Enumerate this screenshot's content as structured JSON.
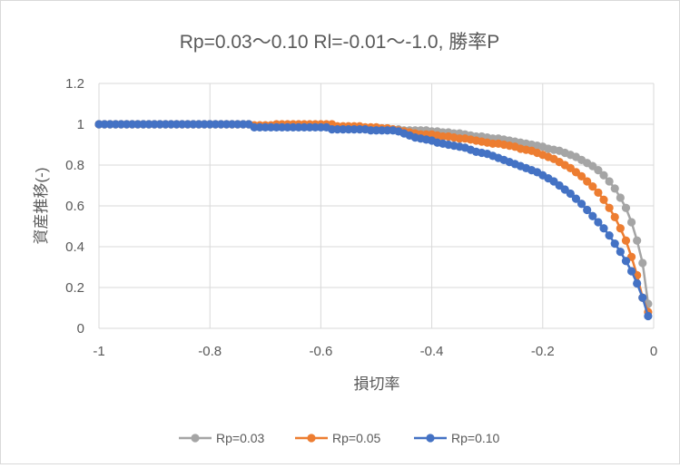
{
  "chart_data": {
    "type": "line",
    "title": "Rp=0.03〜0.10 Rl=-0.01〜-1.0, 勝率P",
    "xlabel": "損切率",
    "ylabel": "資産推移(-)",
    "xlim": [
      -1,
      0
    ],
    "ylim": [
      0,
      1.2
    ],
    "x_ticks": [
      -1,
      -0.8,
      -0.6,
      -0.4,
      -0.2,
      0
    ],
    "x_tick_labels": [
      "-1",
      "-0.8",
      "-0.6",
      "-0.4",
      "-0.2",
      "0"
    ],
    "y_ticks": [
      0,
      0.2,
      0.4,
      0.6,
      0.8,
      1,
      1.2
    ],
    "y_tick_labels": [
      "0",
      "0.2",
      "0.4",
      "0.6",
      "0.8",
      "1",
      "1.2"
    ],
    "grid": true,
    "legend_position": "bottom",
    "x": [
      -1.0,
      -0.99,
      -0.98,
      -0.97,
      -0.96,
      -0.95,
      -0.94,
      -0.93,
      -0.92,
      -0.91,
      -0.9,
      -0.89,
      -0.88,
      -0.87,
      -0.86,
      -0.85,
      -0.84,
      -0.83,
      -0.82,
      -0.81,
      -0.8,
      -0.79,
      -0.78,
      -0.77,
      -0.76,
      -0.75,
      -0.74,
      -0.73,
      -0.72,
      -0.71,
      -0.7,
      -0.69,
      -0.68,
      -0.67,
      -0.66,
      -0.65,
      -0.64,
      -0.63,
      -0.62,
      -0.61,
      -0.6,
      -0.59,
      -0.58,
      -0.57,
      -0.56,
      -0.55,
      -0.54,
      -0.53,
      -0.52,
      -0.51,
      -0.5,
      -0.49,
      -0.48,
      -0.47,
      -0.46,
      -0.45,
      -0.44,
      -0.43,
      -0.42,
      -0.41,
      -0.4,
      -0.39,
      -0.38,
      -0.37,
      -0.36,
      -0.35,
      -0.34,
      -0.33,
      -0.32,
      -0.31,
      -0.3,
      -0.29,
      -0.28,
      -0.27,
      -0.26,
      -0.25,
      -0.24,
      -0.23,
      -0.22,
      -0.21,
      -0.2,
      -0.19,
      -0.18,
      -0.17,
      -0.16,
      -0.15,
      -0.14,
      -0.13,
      -0.12,
      -0.11,
      -0.1,
      -0.09,
      -0.08,
      -0.07,
      -0.06,
      -0.05,
      -0.04,
      -0.03,
      -0.02,
      -0.01
    ],
    "series": [
      {
        "name": "Rp=0.03",
        "color": "#a5a5a5",
        "values": [
          1.0,
          1.0,
          1.0,
          1.0,
          1.0,
          1.0,
          1.0,
          1.0,
          1.0,
          1.0,
          1.0,
          1.0,
          1.0,
          1.0,
          1.0,
          1.0,
          1.0,
          1.0,
          1.0,
          1.0,
          1.0,
          1.0,
          1.0,
          1.0,
          1.0,
          1.0,
          1.0,
          1.0,
          0.99,
          0.99,
          0.99,
          0.99,
          0.99,
          0.99,
          0.99,
          0.99,
          0.99,
          0.99,
          0.99,
          0.99,
          0.99,
          0.99,
          0.99,
          0.985,
          0.985,
          0.985,
          0.98,
          0.98,
          0.98,
          0.98,
          0.98,
          0.98,
          0.98,
          0.975,
          0.975,
          0.97,
          0.97,
          0.97,
          0.97,
          0.97,
          0.965,
          0.965,
          0.96,
          0.96,
          0.955,
          0.955,
          0.95,
          0.945,
          0.94,
          0.94,
          0.935,
          0.93,
          0.93,
          0.925,
          0.92,
          0.915,
          0.91,
          0.905,
          0.9,
          0.895,
          0.89,
          0.88,
          0.875,
          0.87,
          0.86,
          0.85,
          0.84,
          0.825,
          0.81,
          0.795,
          0.775,
          0.75,
          0.72,
          0.685,
          0.64,
          0.59,
          0.52,
          0.43,
          0.32,
          0.12
        ]
      },
      {
        "name": "Rp=0.05",
        "color": "#ed7d31",
        "values": [
          1.0,
          1.0,
          1.0,
          1.0,
          1.0,
          1.0,
          1.0,
          1.0,
          1.0,
          1.0,
          1.0,
          1.0,
          1.0,
          1.0,
          1.0,
          1.0,
          1.0,
          1.0,
          1.0,
          1.0,
          1.0,
          1.0,
          1.0,
          1.0,
          1.0,
          1.0,
          1.0,
          1.0,
          0.995,
          0.995,
          0.995,
          0.995,
          1.0,
          1.0,
          1.0,
          1.0,
          1.0,
          1.0,
          1.0,
          1.0,
          1.0,
          1.0,
          1.0,
          0.99,
          0.99,
          0.99,
          0.99,
          0.99,
          0.985,
          0.985,
          0.985,
          0.98,
          0.98,
          0.975,
          0.97,
          0.965,
          0.96,
          0.955,
          0.95,
          0.95,
          0.95,
          0.945,
          0.94,
          0.94,
          0.935,
          0.93,
          0.93,
          0.925,
          0.92,
          0.915,
          0.91,
          0.905,
          0.905,
          0.9,
          0.895,
          0.89,
          0.88,
          0.875,
          0.87,
          0.86,
          0.85,
          0.84,
          0.83,
          0.815,
          0.8,
          0.785,
          0.765,
          0.745,
          0.72,
          0.695,
          0.665,
          0.63,
          0.59,
          0.545,
          0.49,
          0.43,
          0.35,
          0.26,
          0.15,
          0.08
        ]
      },
      {
        "name": "Rp=0.10",
        "color": "#4472c4",
        "values": [
          1.0,
          1.0,
          1.0,
          1.0,
          1.0,
          1.0,
          1.0,
          1.0,
          1.0,
          1.0,
          1.0,
          1.0,
          1.0,
          1.0,
          1.0,
          1.0,
          1.0,
          1.0,
          1.0,
          1.0,
          1.0,
          1.0,
          1.0,
          1.0,
          1.0,
          1.0,
          1.0,
          1.0,
          0.985,
          0.985,
          0.985,
          0.985,
          0.985,
          0.985,
          0.985,
          0.985,
          0.985,
          0.985,
          0.985,
          0.985,
          0.985,
          0.985,
          0.975,
          0.975,
          0.975,
          0.975,
          0.975,
          0.975,
          0.975,
          0.97,
          0.97,
          0.97,
          0.97,
          0.97,
          0.965,
          0.955,
          0.945,
          0.935,
          0.93,
          0.925,
          0.92,
          0.91,
          0.905,
          0.9,
          0.895,
          0.89,
          0.885,
          0.875,
          0.865,
          0.86,
          0.855,
          0.845,
          0.835,
          0.825,
          0.815,
          0.805,
          0.795,
          0.785,
          0.775,
          0.765,
          0.75,
          0.735,
          0.72,
          0.7,
          0.68,
          0.66,
          0.635,
          0.61,
          0.58,
          0.55,
          0.52,
          0.49,
          0.455,
          0.415,
          0.375,
          0.33,
          0.28,
          0.22,
          0.15,
          0.06
        ]
      }
    ]
  }
}
